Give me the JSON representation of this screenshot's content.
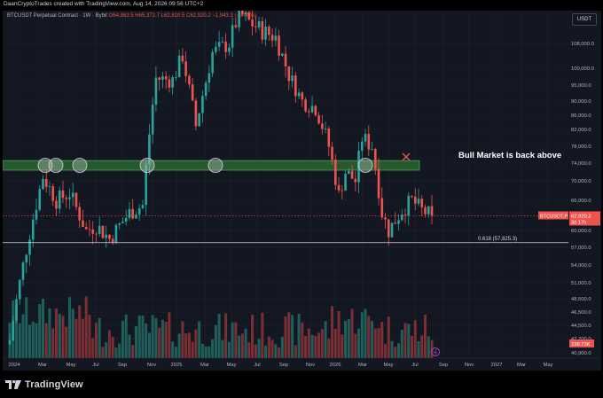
{
  "header": {
    "creator_line": "DaanCryptoTrades created with TradingView.com, Aug 14, 2026 09:56 UTC+2"
  },
  "legend": {
    "symbol": "BTCUSDT Perpetual Contract · 1W · Bybit",
    "ohlc": "O64,863.5 H65,372.7 L62,810.5 C62,920.2 −1,943.3 (−3.00%)"
  },
  "currency_badge": "USDT",
  "price_axis": {
    "ticks": [
      "108,000.0",
      "100,000.0",
      "95,000.0",
      "90,000.0",
      "86,000.0",
      "82,000.0",
      "78,000.0",
      "74,000.0",
      "70,000.0",
      "66,000.0",
      "60,000.0",
      "57,000.0",
      "54,000.0",
      "51,000.0",
      "48,500.0",
      "46,500.0",
      "44,500.0",
      "42,700.0",
      "40,900.0"
    ],
    "current_price_label": "62,920.2",
    "countdown_label": "3d 17h",
    "symbol_tag": "BTCUSDT.P",
    "volume_label": "238.73K"
  },
  "time_axis": {
    "ticks": [
      "2024",
      "Mar",
      "May",
      "Jul",
      "Sep",
      "Nov",
      "2025",
      "Mar",
      "May",
      "Jul",
      "Sep",
      "Nov",
      "2026",
      "Mar",
      "May",
      "Jul",
      "Sep",
      "Nov",
      "2027",
      "Mar",
      "May"
    ]
  },
  "annotations": {
    "bull_market_text": "Bull Market is back above",
    "fib_label": "0.618 (57,825.3)"
  },
  "footer": {
    "brand": "TradingView"
  },
  "colors": {
    "up": "#26a69a",
    "down": "#ef5350",
    "zone_fill": "#1b5e20",
    "zone_border": "#4caf50",
    "background": "#131722"
  },
  "chart_data": {
    "type": "candlestick",
    "title": "BTCUSDT Perpetual Contract · 1W · Bybit",
    "interval": "1W",
    "ylim": [
      38500,
      114000
    ],
    "support_zone": [
      72400,
      74600
    ],
    "fib_level": 57825.3,
    "last_price": 62920.2,
    "marked_swing_highs_count": 7,
    "weeks": 138,
    "key_points": [
      {
        "x": "2024-01",
        "close": 42500
      },
      {
        "x": "2024-03",
        "close": 71000
      },
      {
        "x": "2024-05",
        "close": 67000
      },
      {
        "x": "2024-08",
        "close": 58000
      },
      {
        "x": "2024-11",
        "close": 97000
      },
      {
        "x": "2025-01",
        "close": 102000
      },
      {
        "x": "2025-04",
        "close": 83000
      },
      {
        "x": "2025-07",
        "close": 118000
      },
      {
        "x": "2025-10",
        "close": 110000
      },
      {
        "x": "2025-12",
        "close": 88000
      },
      {
        "x": "2026-02",
        "close": 66000
      },
      {
        "x": "2026-04",
        "close": 80000
      },
      {
        "x": "2026-06",
        "close": 60000
      },
      {
        "x": "2026-08",
        "close": 62920
      }
    ]
  }
}
